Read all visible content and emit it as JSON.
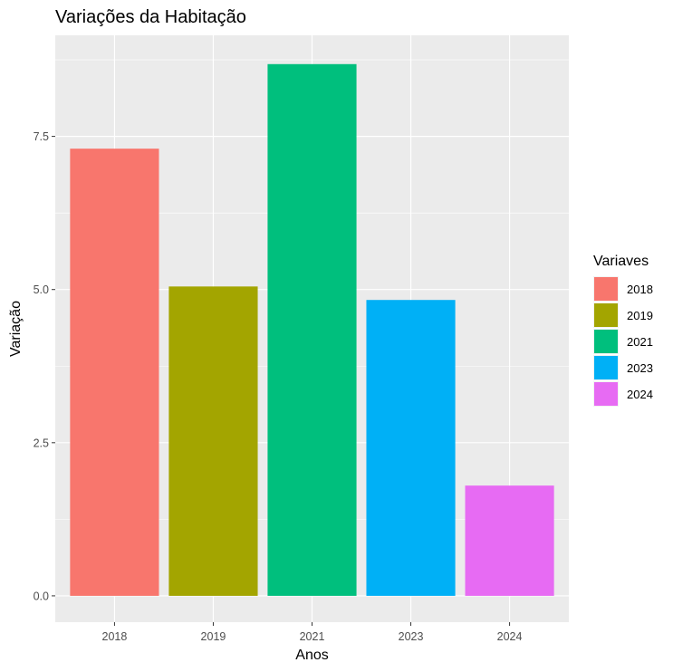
{
  "chart_data": {
    "type": "bar",
    "title": "Variações da Habitação",
    "xlabel": "Anos",
    "ylabel": "Variação",
    "categories": [
      "2018",
      "2019",
      "2021",
      "2023",
      "2024"
    ],
    "values": [
      7.3,
      5.05,
      8.68,
      4.83,
      1.8
    ],
    "ylim": [
      -0.43,
      9.15
    ],
    "yticks": [
      0.0,
      2.5,
      5.0,
      7.5
    ],
    "ytick_labels": [
      "0.0",
      "2.5",
      "5.0",
      "7.5"
    ],
    "grid": true,
    "legend": {
      "title": "Variaves",
      "placement": "right",
      "entries": [
        "2018",
        "2019",
        "2021",
        "2023",
        "2024"
      ]
    },
    "colors": [
      "#F8766D",
      "#A3A500",
      "#00BF7D",
      "#00B0F6",
      "#E76BF3"
    ],
    "panel_background": "#EBEBEB",
    "grid_color": "#FFFFFF"
  }
}
